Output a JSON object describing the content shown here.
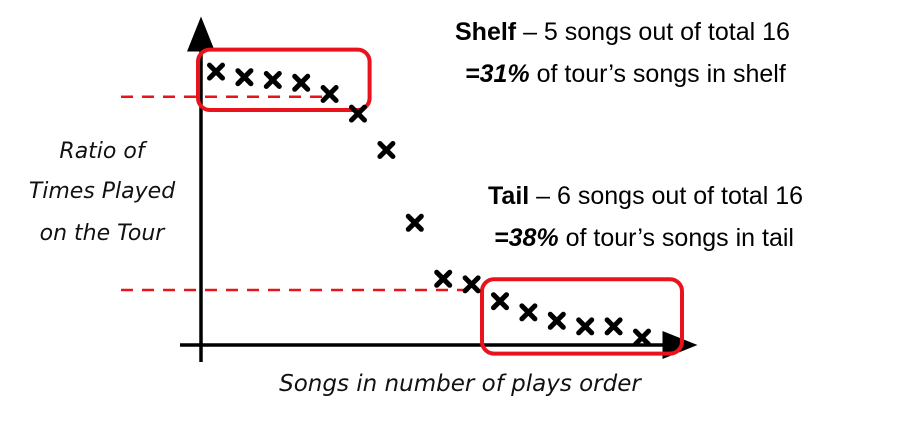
{
  "chart_data": {
    "type": "scatter",
    "xlabel": "Songs in number of plays order",
    "ylabel_lines": [
      "Ratio of",
      "Times Played",
      "on the Tour"
    ],
    "x": [
      1,
      2,
      3,
      4,
      5,
      6,
      7,
      8,
      9,
      10,
      11,
      12,
      13,
      14,
      15,
      16
    ],
    "values": [
      0.98,
      0.96,
      0.95,
      0.94,
      0.9,
      0.83,
      0.7,
      0.44,
      0.24,
      0.22,
      0.16,
      0.12,
      0.09,
      0.07,
      0.07,
      0.03
    ],
    "marker": "x",
    "marker_color": "#000000",
    "highlight_color": "#e8131b",
    "shelf": {
      "count": 5,
      "threshold": 0.89,
      "title": "Shelf",
      "text": " – 5 songs out of total 16",
      "pct": "=31%",
      "pct_text": " of tour’s songs in shelf"
    },
    "tail": {
      "count": 6,
      "threshold": 0.2,
      "title": "Tail",
      "text": " – 6 songs out of total 16",
      "pct": "=38%",
      "pct_text": " of tour’s songs in tail"
    }
  }
}
